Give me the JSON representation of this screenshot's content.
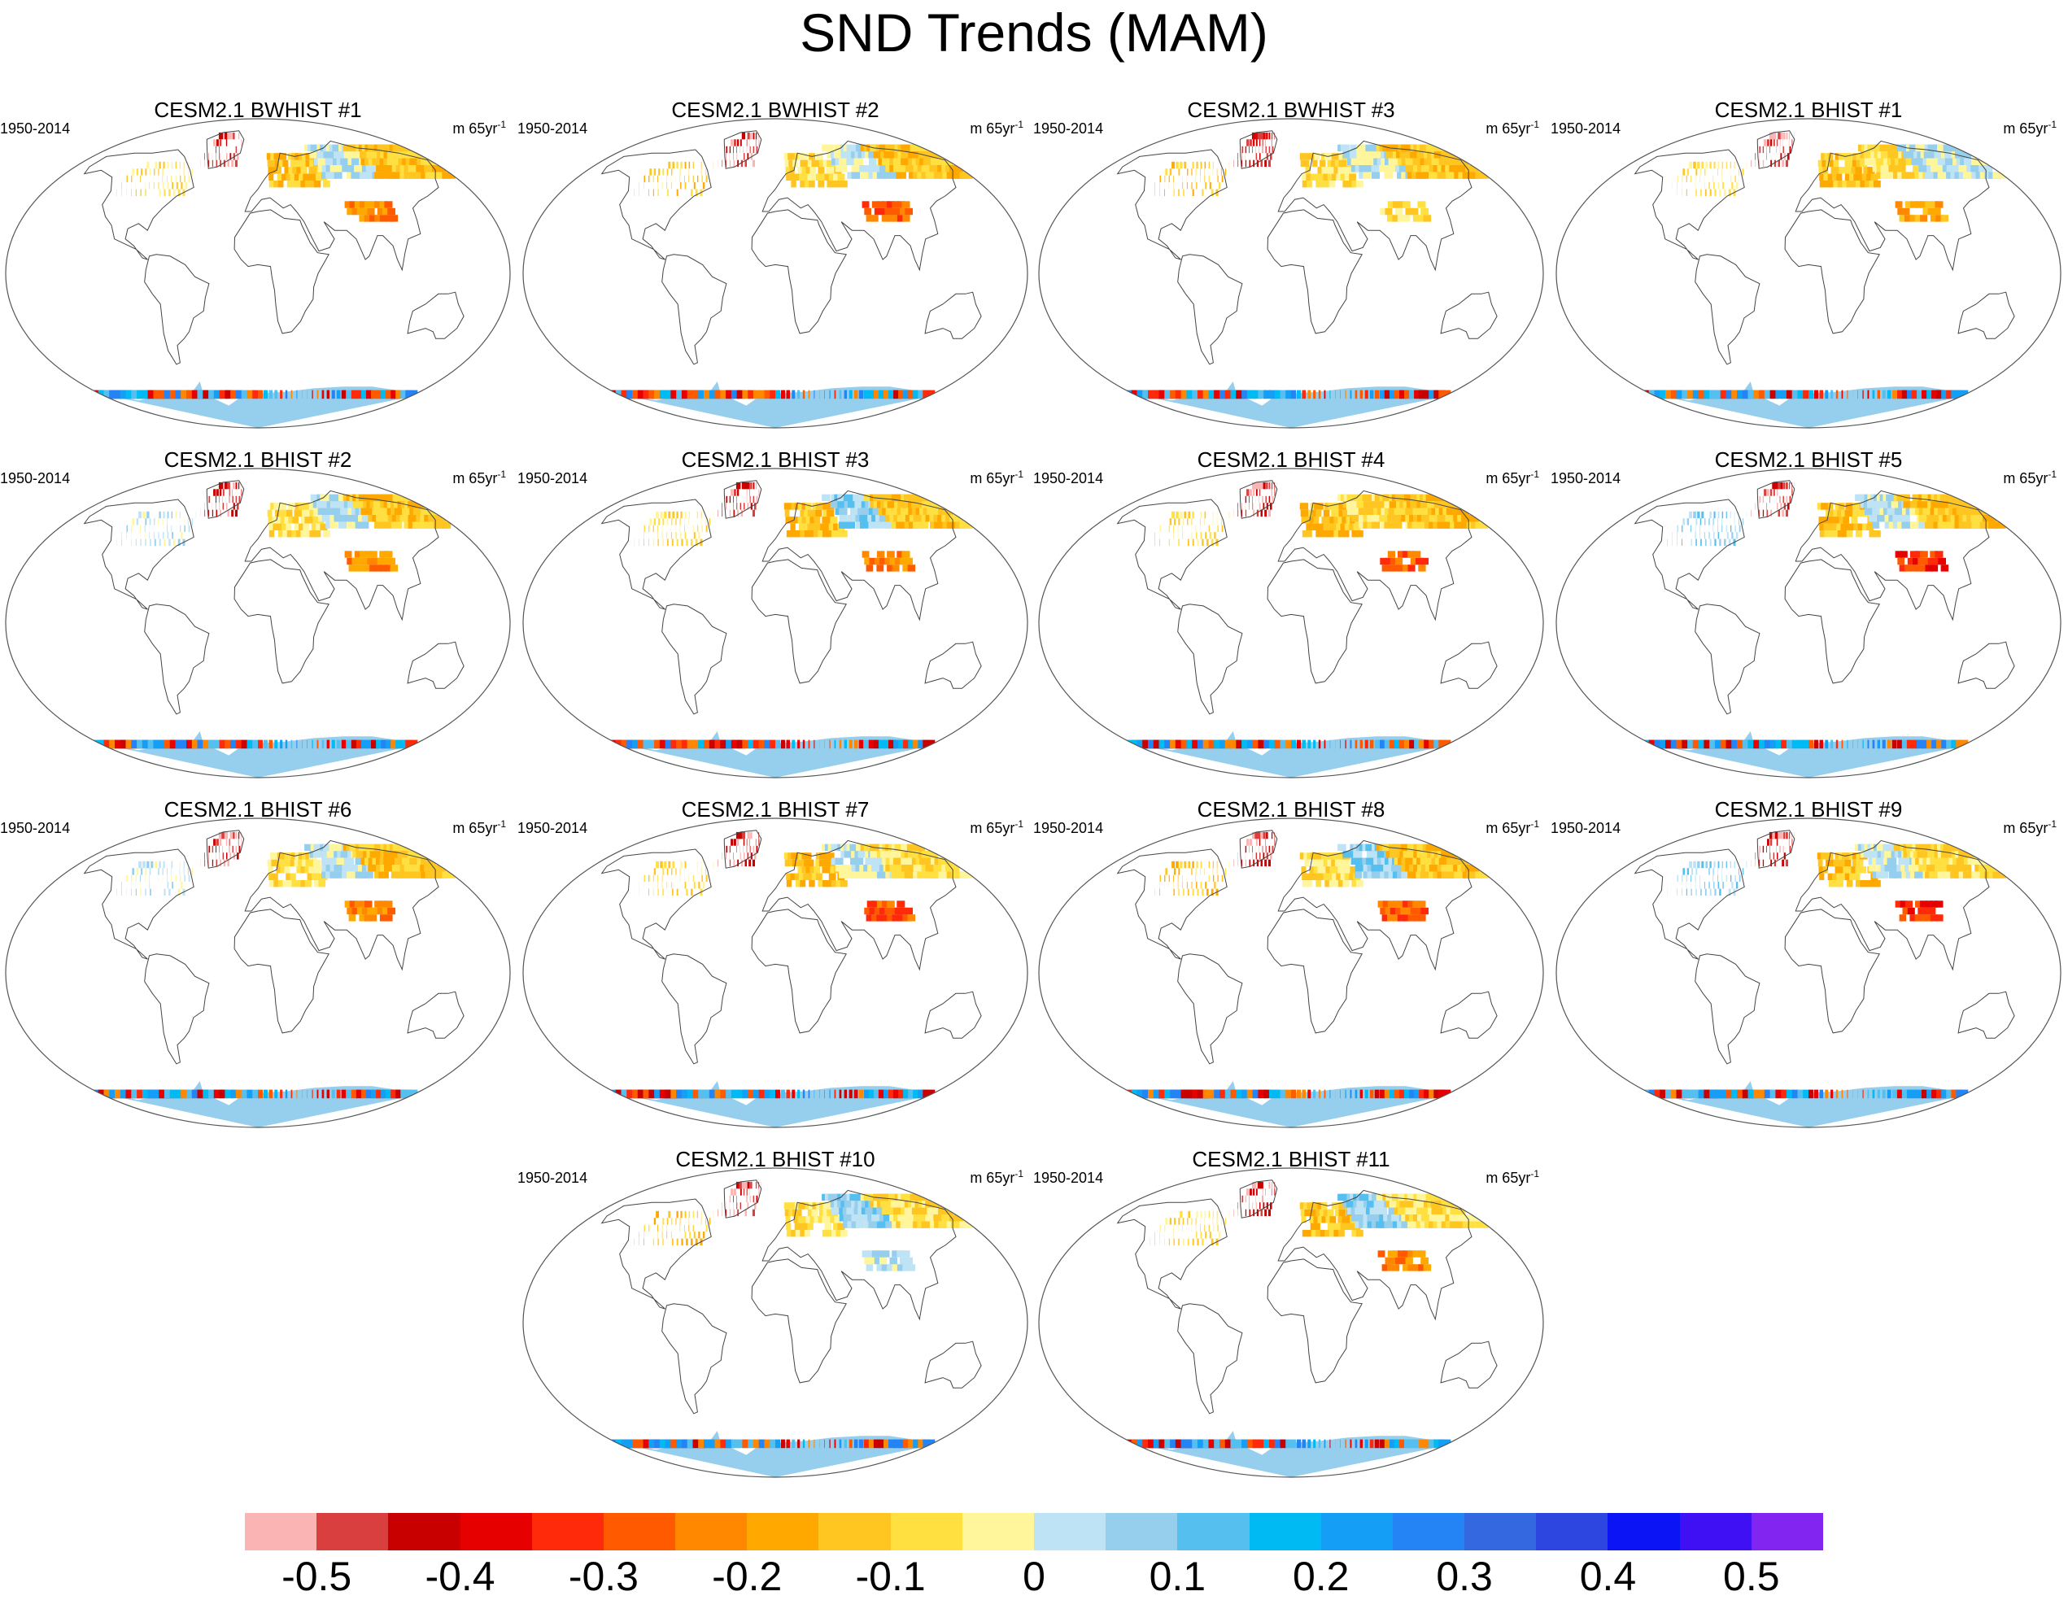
{
  "title": "SND Trends (MAM)",
  "panels": [
    {
      "title": "CESM2.1 BWHIST #1",
      "period": "1950-2014",
      "units_base": "m 65yr",
      "units_exp": "-1",
      "pattern": 0
    },
    {
      "title": "CESM2.1 BWHIST #2",
      "period": "1950-2014",
      "units_base": "m 65yr",
      "units_exp": "-1",
      "pattern": 1
    },
    {
      "title": "CESM2.1 BWHIST #3",
      "period": "1950-2014",
      "units_base": "m 65yr",
      "units_exp": "-1",
      "pattern": 2
    },
    {
      "title": "CESM2.1 BHIST #1",
      "period": "1950-2014",
      "units_base": "m 65yr",
      "units_exp": "-1",
      "pattern": 3
    },
    {
      "title": "CESM2.1 BHIST #2",
      "period": "1950-2014",
      "units_base": "m 65yr",
      "units_exp": "-1",
      "pattern": 4
    },
    {
      "title": "CESM2.1 BHIST #3",
      "period": "1950-2014",
      "units_base": "m 65yr",
      "units_exp": "-1",
      "pattern": 5
    },
    {
      "title": "CESM2.1 BHIST #4",
      "period": "1950-2014",
      "units_base": "m 65yr",
      "units_exp": "-1",
      "pattern": 6
    },
    {
      "title": "CESM2.1 BHIST #5",
      "period": "1950-2014",
      "units_base": "m 65yr",
      "units_exp": "-1",
      "pattern": 7
    },
    {
      "title": "CESM2.1 BHIST #6",
      "period": "1950-2014",
      "units_base": "m 65yr",
      "units_exp": "-1",
      "pattern": 8
    },
    {
      "title": "CESM2.1 BHIST #7",
      "period": "1950-2014",
      "units_base": "m 65yr",
      "units_exp": "-1",
      "pattern": 9
    },
    {
      "title": "CESM2.1 BHIST #8",
      "period": "1950-2014",
      "units_base": "m 65yr",
      "units_exp": "-1",
      "pattern": 10
    },
    {
      "title": "CESM2.1 BHIST #9",
      "period": "1950-2014",
      "units_base": "m 65yr",
      "units_exp": "-1",
      "pattern": 11
    },
    {
      "title": "CESM2.1 BHIST #10",
      "period": "1950-2014",
      "units_base": "m 65yr",
      "units_exp": "-1",
      "pattern": 12
    },
    {
      "title": "CESM2.1 BHIST #11",
      "period": "1950-2014",
      "units_base": "m 65yr",
      "units_exp": "-1",
      "pattern": 13
    }
  ],
  "colorbar": {
    "colors": [
      "#fbb4b4",
      "#d93f3f",
      "#c80000",
      "#e60000",
      "#ff2a0a",
      "#ff5a00",
      "#ff8800",
      "#ffa900",
      "#ffc520",
      "#ffe040",
      "#fff59a",
      "#bde3f4",
      "#96ceee",
      "#55bfef",
      "#00baf3",
      "#149ef5",
      "#2484f5",
      "#3368e0",
      "#2e46e0",
      "#0a14f5",
      "#4010f5",
      "#8225f0"
    ],
    "labels": [
      "-0.5",
      "-0.4",
      "-0.3",
      "-0.2",
      "-0.1",
      "0",
      "0.1",
      "0.2",
      "0.3",
      "0.4",
      "0.5"
    ]
  }
}
